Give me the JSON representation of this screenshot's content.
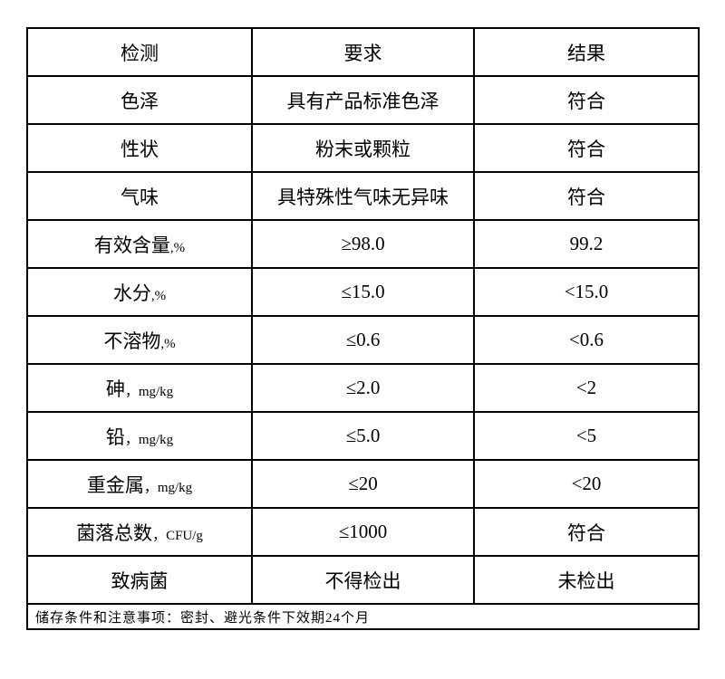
{
  "table": {
    "headers": [
      "检测",
      "要求",
      "结果"
    ],
    "rows": [
      {
        "item": "色泽",
        "unit": "",
        "requirement": "具有产品标准色泽",
        "result": "符合"
      },
      {
        "item": "性状",
        "unit": "",
        "requirement": "粉末或颗粒",
        "result": "符合"
      },
      {
        "item": "气味",
        "unit": "",
        "requirement": "具特殊性气味无异味",
        "result": "符合"
      },
      {
        "item": "有效含量",
        "unit": ",%",
        "requirement": "≥98.0",
        "result": "99.2"
      },
      {
        "item": "水分",
        "unit": ",%",
        "requirement": "≤15.0",
        "result": "<15.0"
      },
      {
        "item": "不溶物",
        "unit": ",%",
        "requirement": "≤0.6",
        "result": "<0.6"
      },
      {
        "item": "砷",
        "unit": "，mg/kg",
        "requirement": "≤2.0",
        "result": "<2"
      },
      {
        "item": "铅",
        "unit": "，mg/kg",
        "requirement": "≤5.0",
        "result": "<5"
      },
      {
        "item": "重金属",
        "unit": "，mg/kg",
        "requirement": "≤20",
        "result": "<20"
      },
      {
        "item": "菌落总数",
        "unit": "，CFU/g",
        "requirement": "≤1000",
        "result": "符合"
      },
      {
        "item": "致病菌",
        "unit": "",
        "requirement": "不得检出",
        "result": "未检出"
      }
    ],
    "footer": "储存条件和注意事项：密封、避光条件下效期24个月"
  }
}
